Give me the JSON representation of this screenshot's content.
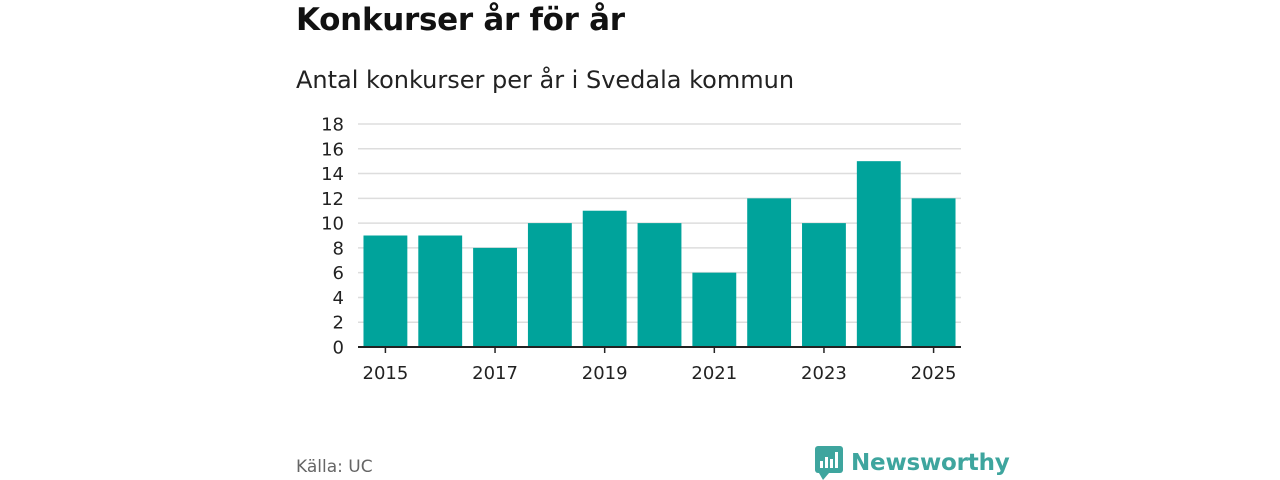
{
  "title": "Konkurser år för år",
  "subtitle": "Antal konkurser per år i Svedala kommun",
  "source": "Källa: UC",
  "brand": "Newsworthy",
  "colors": {
    "bar": "#00a39b",
    "grid": "#dddddd",
    "axis": "#222222",
    "brand": "#3ea59e"
  },
  "chart_data": {
    "type": "bar",
    "title": "Antal konkurser per år i Svedala kommun",
    "xlabel": "",
    "ylabel": "",
    "categories": [
      "2015",
      "2016",
      "2017",
      "2018",
      "2019",
      "2020",
      "2021",
      "2022",
      "2023",
      "2024",
      "2025"
    ],
    "values": [
      9,
      9,
      8,
      10,
      11,
      10,
      6,
      12,
      10,
      15,
      12
    ],
    "x_tick_labels": [
      "2015",
      "2017",
      "2019",
      "2021",
      "2023",
      "2025"
    ],
    "y_ticks": [
      0,
      2,
      4,
      6,
      8,
      10,
      12,
      14,
      16,
      18
    ],
    "ylim": [
      0,
      18
    ],
    "grid": true,
    "legend": "none"
  }
}
